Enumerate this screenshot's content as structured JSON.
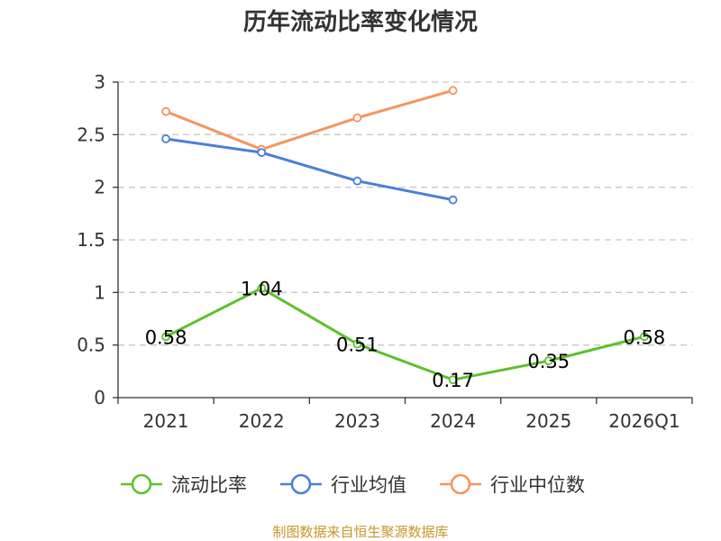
{
  "chart_data": {
    "type": "line",
    "title": "历年流动比率变化情况",
    "categories": [
      "2021",
      "2022",
      "2023",
      "2024",
      "2025",
      "2026Q1"
    ],
    "ylim": [
      0,
      3
    ],
    "yticks": [
      "0",
      "0.5",
      "1",
      "1.5",
      "2",
      "2.5",
      "3"
    ],
    "grid": true,
    "legend_position": "bottom",
    "series": [
      {
        "name": "流动比率",
        "color": "#5cc12c",
        "values": [
          0.58,
          1.04,
          0.51,
          0.17,
          0.35,
          0.58
        ],
        "labels": [
          "0.58",
          "1.04",
          "0.51",
          "0.17",
          "0.35",
          "0.58"
        ]
      },
      {
        "name": "行业均值",
        "color": "#4a7fd8",
        "values": [
          2.46,
          2.33,
          2.06,
          1.88,
          null,
          null
        ]
      },
      {
        "name": "行业中位数",
        "color": "#f59460",
        "values": [
          2.72,
          2.36,
          2.66,
          2.92,
          null,
          null
        ]
      }
    ]
  },
  "source": {
    "text": "制图数据来自恒生聚源数据库",
    "color": "#c8962a"
  }
}
